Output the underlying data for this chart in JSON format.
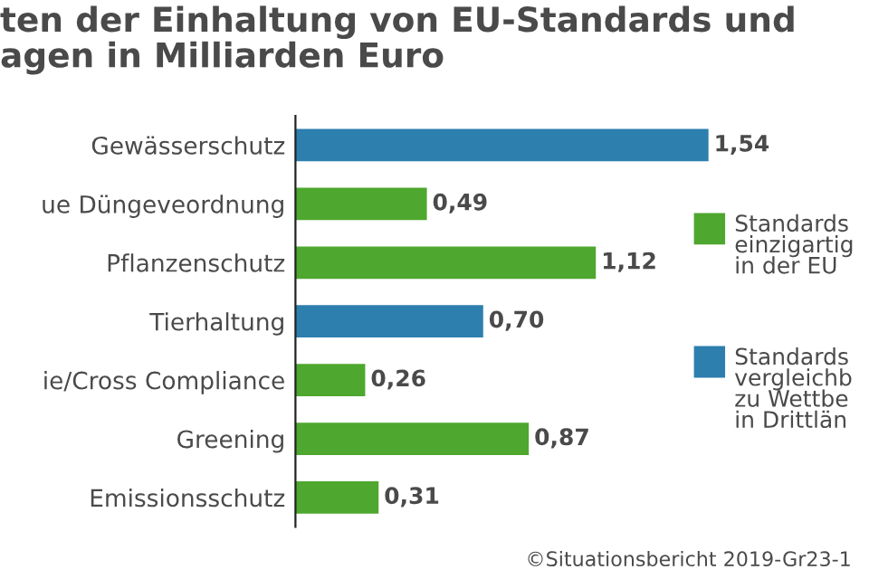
{
  "chart_data": {
    "type": "bar",
    "orientation": "horizontal",
    "title": "ten der Einhaltung von EU-Standards und\nagen in Milliarden Euro",
    "categories": [
      "Gewässerschutz",
      "ue Düngeveordnung",
      "Pflanzenschutz",
      "Tierhaltung",
      "ie/Cross Compliance",
      "Greening",
      "Emissionsschutz"
    ],
    "series": [
      {
        "name": "Standards\neinzigartig\nin der EU",
        "color": "#4ea72e",
        "values": [
          null,
          0.49,
          1.12,
          null,
          0.26,
          0.87,
          0.31
        ],
        "value_labels": [
          null,
          "0,49",
          "1,12",
          null,
          "0,26",
          "0,87",
          "0,31"
        ]
      },
      {
        "name": "Standards\nvergleichb\nzu Wettbe\nin Drittlän",
        "color": "#2d7fae",
        "values": [
          1.54,
          null,
          null,
          0.7,
          null,
          null,
          null
        ],
        "value_labels": [
          "1,54",
          null,
          null,
          "0,70",
          null,
          null,
          null
        ]
      }
    ],
    "grid": false,
    "legend": "right",
    "annotations": [
      "©Situationsbericht 2019-Gr23-1"
    ]
  }
}
